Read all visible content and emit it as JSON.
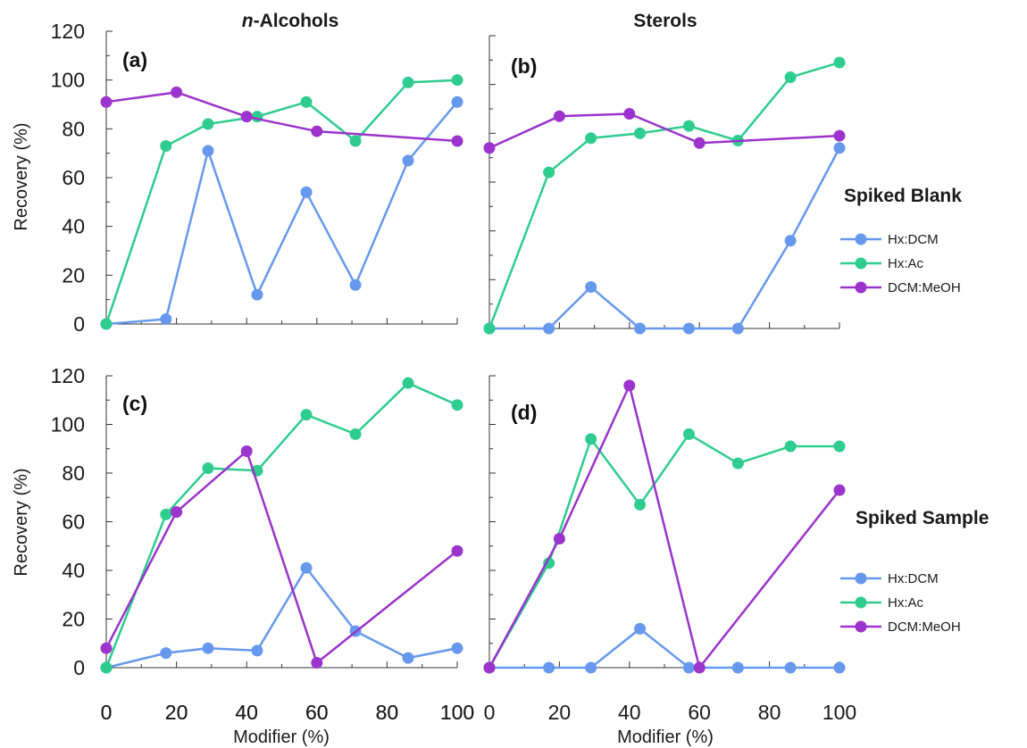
{
  "figure": {
    "col_titles": {
      "italic_prefix": "n",
      "left_rest": "-Alcohols",
      "right": "Sterols"
    },
    "ylabel": "Recovery (%)",
    "xlabel": "Modifier (%)",
    "group_titles": {
      "top": "Spiked Blank",
      "bottom": "Spiked Sample"
    },
    "legend": [
      "Hx:DCM",
      "Hx:Ac",
      "DCM:MeOH"
    ]
  },
  "colors": {
    "Hx:DCM": "#6699ee",
    "Hx:Ac": "#2ecc8f",
    "DCM:MeOH": "#9b33cc"
  },
  "chart_data": [
    {
      "panel": "(a)",
      "type": "line",
      "xlim": [
        0,
        100
      ],
      "ylim": [
        0,
        120
      ],
      "xticks": [
        "0",
        "20",
        "40",
        "60",
        "80",
        "100"
      ],
      "yticks": [
        "0",
        "20",
        "40",
        "60",
        "80",
        "100",
        "120"
      ],
      "series": [
        {
          "name": "Hx:DCM",
          "x": [
            0,
            17,
            29,
            43,
            57,
            71,
            86,
            100
          ],
          "y": [
            0,
            2,
            71,
            12,
            54,
            16,
            67,
            91
          ]
        },
        {
          "name": "Hx:Ac",
          "x": [
            0,
            17,
            29,
            43,
            57,
            71,
            86,
            100
          ],
          "y": [
            0,
            73,
            82,
            85,
            91,
            75,
            99,
            100
          ]
        },
        {
          "name": "DCM:MeOH",
          "x": [
            0,
            20,
            40,
            60,
            100
          ],
          "y": [
            91,
            95,
            85,
            79,
            75
          ]
        }
      ]
    },
    {
      "panel": "(b)",
      "type": "line",
      "xlim": [
        0,
        100
      ],
      "ylim": [
        0,
        120
      ],
      "xticks": [],
      "yticks": [],
      "series": [
        {
          "name": "Hx:DCM",
          "x": [
            0,
            17,
            29,
            43,
            57,
            71,
            86,
            100
          ],
          "y": [
            0,
            0,
            17,
            0,
            0,
            0,
            36,
            74
          ]
        },
        {
          "name": "Hx:Ac",
          "x": [
            0,
            17,
            29,
            43,
            57,
            71,
            86,
            100
          ],
          "y": [
            0,
            64,
            78,
            80,
            83,
            77,
            103,
            109
          ]
        },
        {
          "name": "DCM:MeOH",
          "x": [
            0,
            20,
            40,
            60,
            100
          ],
          "y": [
            74,
            87,
            88,
            76,
            79
          ]
        }
      ]
    },
    {
      "panel": "(c)",
      "type": "line",
      "xlim": [
        0,
        100
      ],
      "ylim": [
        0,
        120
      ],
      "xticks": [
        "0",
        "20",
        "40",
        "60",
        "80",
        "100"
      ],
      "yticks": [
        "0",
        "20",
        "40",
        "60",
        "80",
        "100",
        "120"
      ],
      "series": [
        {
          "name": "Hx:DCM",
          "x": [
            0,
            17,
            29,
            43,
            57,
            71,
            86,
            100
          ],
          "y": [
            0,
            6,
            8,
            7,
            41,
            15,
            4,
            8
          ]
        },
        {
          "name": "Hx:Ac",
          "x": [
            0,
            17,
            29,
            43,
            57,
            71,
            86,
            100
          ],
          "y": [
            0,
            63,
            82,
            81,
            104,
            96,
            117,
            108
          ]
        },
        {
          "name": "DCM:MeOH",
          "x": [
            0,
            20,
            40,
            60,
            100
          ],
          "y": [
            8,
            64,
            89,
            2,
            48
          ]
        }
      ]
    },
    {
      "panel": "(d)",
      "type": "line",
      "xlim": [
        0,
        100
      ],
      "ylim": [
        0,
        120
      ],
      "xticks": [
        "0",
        "20",
        "40",
        "60",
        "80",
        "100"
      ],
      "yticks": [],
      "series": [
        {
          "name": "Hx:DCM",
          "x": [
            0,
            17,
            29,
            43,
            57,
            71,
            86,
            100
          ],
          "y": [
            0,
            0,
            0,
            16,
            0,
            0,
            0,
            0
          ]
        },
        {
          "name": "Hx:Ac",
          "x": [
            0,
            17,
            29,
            43,
            57,
            71,
            86,
            100
          ],
          "y": [
            0,
            43,
            94,
            67,
            96,
            84,
            91,
            91
          ]
        },
        {
          "name": "DCM:MeOH",
          "x": [
            0,
            20,
            40,
            60,
            100
          ],
          "y": [
            0,
            53,
            116,
            0,
            73
          ]
        }
      ]
    }
  ]
}
